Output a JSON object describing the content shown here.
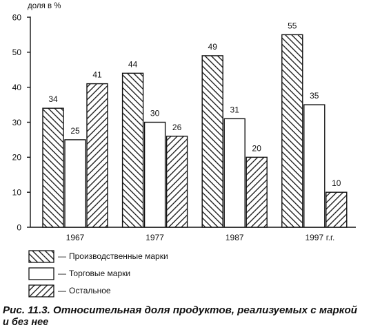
{
  "chart_data": {
    "type": "bar",
    "ylabel": "доля в %",
    "xlabel": "г.г.",
    "categories": [
      "1967",
      "1977",
      "1987",
      "1997"
    ],
    "ylim": [
      0,
      60
    ],
    "yticks": [
      0,
      10,
      20,
      30,
      40,
      50,
      60
    ],
    "grid": false,
    "data_labels": true,
    "series": [
      {
        "name": "Производственные марки",
        "values": [
          34,
          44,
          49,
          55
        ],
        "pattern": "hatch-descending"
      },
      {
        "name": "Торговые марки",
        "values": [
          25,
          30,
          31,
          35
        ],
        "pattern": "blank"
      },
      {
        "name": "Остальное",
        "values": [
          41,
          26,
          20,
          10
        ],
        "pattern": "hatch-ascending"
      }
    ],
    "legend": {
      "placement": "bottom-left",
      "dash": "—"
    },
    "caption": [
      "Рис. 11.3. Относительная доля продуктов, реализуемых с маркой",
      "и без нее"
    ],
    "colors": {
      "ink": "#111111",
      "paper": "#ffffff"
    }
  }
}
